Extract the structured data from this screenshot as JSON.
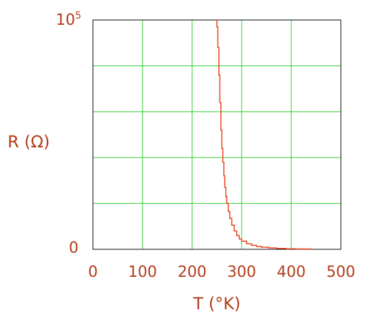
{
  "chart_data": {
    "type": "line",
    "xlabel": "T (°K)",
    "ylabel": "R (Ω)",
    "xlim": [
      0,
      500
    ],
    "ylim": [
      0,
      100000
    ],
    "x_ticks": [
      "0",
      "100",
      "200",
      "300",
      "400",
      "500"
    ],
    "y_ticks": {
      "bottom": "0",
      "top_base": "10",
      "top_exp": "5"
    },
    "grid": true,
    "colors": {
      "line": "#e8401a",
      "grid": "#2ecc2e",
      "text": "#b33a1a",
      "frame": "#000000"
    },
    "series": [
      {
        "values_xy": [
          [
            248,
            100000
          ],
          [
            250,
            97000
          ],
          [
            252,
            88000
          ],
          [
            254,
            76000
          ],
          [
            256,
            64000
          ],
          [
            258,
            52000
          ],
          [
            260,
            44000
          ],
          [
            262,
            38000
          ],
          [
            264,
            32000
          ],
          [
            266,
            27000
          ],
          [
            268,
            23000
          ],
          [
            270,
            20000
          ],
          [
            273,
            16500
          ],
          [
            276,
            13500
          ],
          [
            280,
            10500
          ],
          [
            285,
            8000
          ],
          [
            290,
            6000
          ],
          [
            295,
            4500
          ],
          [
            300,
            3500
          ],
          [
            310,
            2400
          ],
          [
            320,
            1700
          ],
          [
            330,
            1200
          ],
          [
            340,
            900
          ],
          [
            355,
            600
          ],
          [
            370,
            400
          ],
          [
            390,
            250
          ],
          [
            410,
            160
          ],
          [
            440,
            100
          ]
        ]
      }
    ]
  }
}
